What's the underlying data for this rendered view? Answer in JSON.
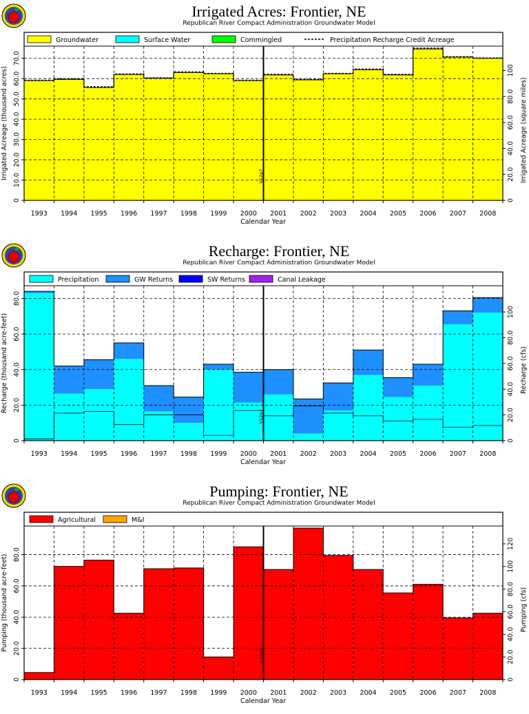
{
  "chart_data": [
    {
      "type": "bar",
      "stacked": true,
      "title": "Irrigated Acres: Frontier, NE",
      "subtitle": "Republican River Compact Administration Groundwater Model",
      "xlabel": "Calendar Year",
      "ylabel": "Irrigated Acreage (thousand acres)",
      "y2label": "Irrigated Acreage (square miles)",
      "categories": [
        "1993",
        "1994",
        "1995",
        "1996",
        "1997",
        "1998",
        "1999",
        "2000",
        "2001",
        "2002",
        "2003",
        "2004",
        "2005",
        "2006",
        "2007",
        "2008"
      ],
      "ylim": [
        0,
        75
      ],
      "yticks": [
        0,
        10.0,
        20.0,
        30.0,
        40.0,
        50.0,
        60.0,
        70.0
      ],
      "y2ticks": [
        0,
        20.0,
        40.0,
        60.0,
        80.0,
        100
      ],
      "y2_scale": 1.5625,
      "grid": true,
      "legend_position": "top",
      "series": [
        {
          "name": "Groundwater",
          "color": "#ffff00",
          "values": [
            59.0,
            59.6,
            55.6,
            62.0,
            60.2,
            63.0,
            62.4,
            59.0,
            61.8,
            59.4,
            62.4,
            64.4,
            61.8,
            74.6,
            70.6,
            70.0
          ]
        },
        {
          "name": "Surface Water",
          "color": "#00ffff",
          "values": [
            0,
            0,
            0,
            0,
            0,
            0,
            0,
            0,
            0,
            0,
            0,
            0,
            0,
            0,
            0,
            0
          ]
        },
        {
          "name": "Commingled",
          "color": "#00ff00",
          "values": [
            0,
            0,
            0,
            0,
            0,
            0,
            0,
            0,
            0,
            0,
            0,
            0,
            0,
            0,
            0,
            0
          ]
        }
      ],
      "line_series": {
        "name": "Precipitation Recharge Credit Acreage",
        "style": "dashed",
        "values": [
          59.2,
          60.0,
          56.0,
          62.3,
          60.4,
          63.3,
          62.6,
          59.2,
          62.1,
          59.6,
          62.6,
          64.7,
          62.1,
          75.0,
          70.8,
          70.2
        ]
      },
      "vline": {
        "after_index": 7,
        "label": "V12p7"
      }
    },
    {
      "type": "bar",
      "stacked": true,
      "title": "Recharge: Frontier, NE",
      "subtitle": "Republican River Compact Administration Groundwater Model",
      "xlabel": "Calendar Year",
      "ylabel": "Recharge (thousand acre-feet)",
      "y2label": "Recharge (cfs)",
      "categories": [
        "1993",
        "1994",
        "1995",
        "1996",
        "1997",
        "1998",
        "1999",
        "2000",
        "2001",
        "2002",
        "2003",
        "2004",
        "2005",
        "2006",
        "2007",
        "2008"
      ],
      "ylim": [
        0,
        86
      ],
      "yticks": [
        0,
        20.0,
        40.0,
        60.0,
        80.0
      ],
      "y2ticks": [
        0,
        20.0,
        40.0,
        60.0,
        80.0,
        100
      ],
      "y2_scale": 1.381,
      "grid": true,
      "legend_position": "top",
      "series": [
        {
          "name": "Precipitation",
          "color": "#00ffff",
          "values": [
            83.0,
            26.5,
            29.0,
            46.0,
            16.5,
            10.0,
            40.0,
            21.5,
            26.0,
            4.0,
            17.0,
            37.0,
            24.5,
            31.0,
            65.5,
            72.0
          ]
        },
        {
          "name": "GW Returns",
          "color": "#1e90ff",
          "values": [
            1.0,
            15.5,
            16.5,
            9.0,
            14.5,
            14.5,
            3.0,
            17.0,
            14.0,
            19.5,
            15.5,
            14.0,
            11.0,
            12.0,
            7.5,
            8.5
          ]
        },
        {
          "name": "SW Returns",
          "color": "#0000ff",
          "values": [
            0,
            0,
            0,
            0,
            0,
            0,
            0,
            0,
            0,
            0,
            0,
            0,
            0,
            0,
            0,
            0
          ]
        },
        {
          "name": "Canal Leakage",
          "color": "#a020f0",
          "values": [
            0,
            0,
            0,
            0,
            0,
            0,
            0,
            0,
            0,
            0,
            0,
            0,
            0,
            0,
            0,
            0
          ]
        }
      ],
      "vline": {
        "after_index": 7,
        "label": "V12p7"
      }
    },
    {
      "type": "bar",
      "stacked": true,
      "title": "Pumping: Frontier, NE",
      "subtitle": "Republican River Compact Administration Groundwater Model",
      "xlabel": "Calendar Year",
      "ylabel": "Pumping (thousand acre-feet)",
      "y2label": "Pumping (cfs)",
      "categories": [
        "1993",
        "1994",
        "1995",
        "1996",
        "1997",
        "1998",
        "1999",
        "2000",
        "2001",
        "2002",
        "2003",
        "2004",
        "2005",
        "2006",
        "2007",
        "2008"
      ],
      "ylim": [
        0,
        97
      ],
      "yticks": [
        0,
        20.0,
        40.0,
        60.0,
        80.0
      ],
      "y2ticks": [
        0,
        20.0,
        40.0,
        60.0,
        80.0,
        100,
        120
      ],
      "y2_scale": 1.381,
      "grid": true,
      "legend_position": "top",
      "series": [
        {
          "name": "Agricultural",
          "color": "#ff0000",
          "values": [
            4.5,
            72.5,
            76.5,
            42.5,
            71.0,
            71.5,
            14.5,
            85.0,
            70.5,
            97.0,
            79.5,
            70.5,
            55.5,
            61.0,
            39.5,
            42.5
          ]
        },
        {
          "name": "M&I",
          "color": "#ffa500",
          "values": [
            0,
            0,
            0,
            0,
            0,
            0,
            0,
            0,
            0,
            0,
            0,
            0,
            0,
            0,
            0,
            0
          ]
        }
      ],
      "vline": {
        "after_index": 7,
        "label": "V12p7"
      }
    }
  ]
}
